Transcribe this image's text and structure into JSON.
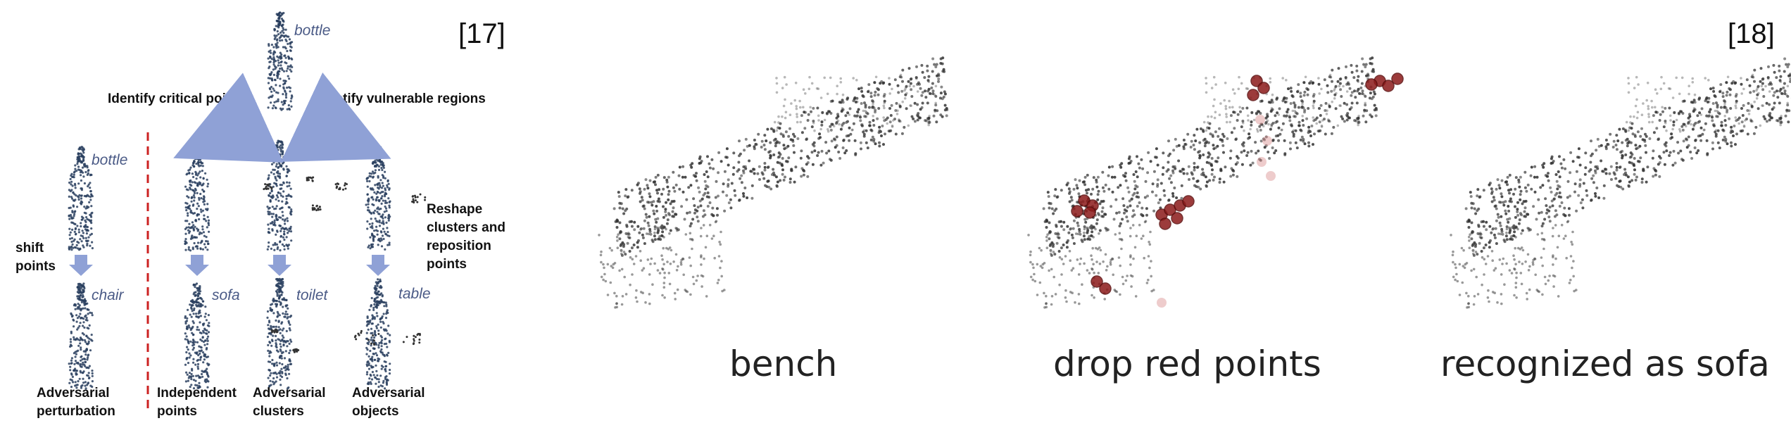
{
  "left_panel": {
    "ref": "[17]",
    "top_label": "bottle",
    "left_title": "Identify critical points",
    "right_title": "Identify vulnerable regions",
    "col1_top_label": "bottle",
    "shift_label": [
      "shift",
      "points"
    ],
    "col1_bottom_label": "chair",
    "col2_bottom_label": "sofa",
    "col3_bottom_label": "toilet",
    "col4_bottom_label": "table",
    "reshape_label": [
      "Reshape",
      "clusters and",
      "reposition",
      "points"
    ],
    "captions": {
      "col1": [
        "Adversarial",
        "perturbation"
      ],
      "col2": [
        "Independent",
        "points"
      ],
      "col3": [
        "Adversarial",
        "clusters"
      ],
      "col4": [
        "Adversarial",
        "objects"
      ]
    },
    "colors": {
      "arrow": "#8fa1d6",
      "divider": "#cc2222",
      "bottle_points": "#2a3f5f"
    }
  },
  "right_panel": {
    "ref": "[18]",
    "captions": [
      "bench",
      "drop red points",
      "recognized as sofa"
    ],
    "colors": {
      "points": "#333333",
      "critical": "#8b1a1a"
    }
  }
}
